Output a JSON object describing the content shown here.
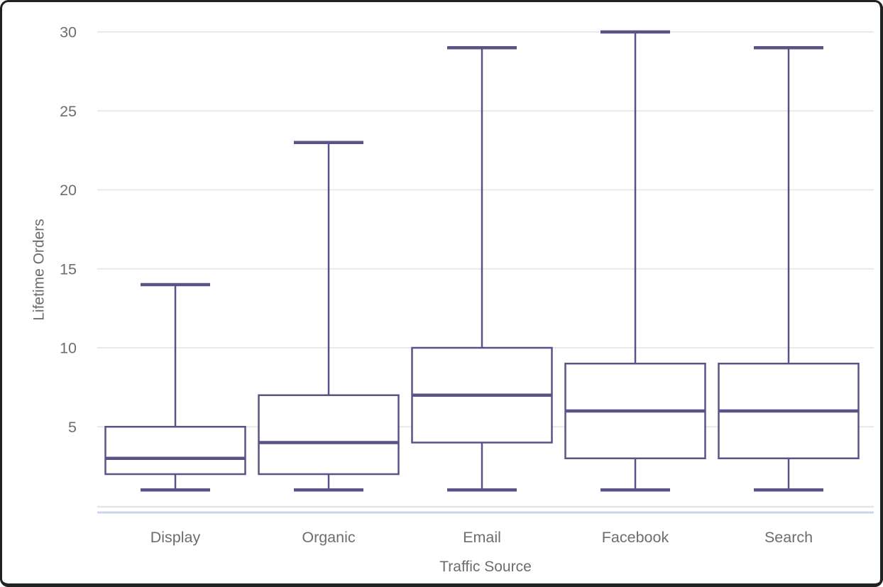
{
  "card": {
    "background": "#ffffff",
    "frame_color": "#1e2223"
  },
  "chart_data": {
    "type": "boxplot",
    "title": "",
    "xlabel": "Traffic Source",
    "ylabel": "Lifetime Orders",
    "categories": [
      "Display",
      "Organic",
      "Email",
      "Facebook",
      "Search"
    ],
    "series": [
      {
        "name": "Display",
        "low": 1,
        "q1": 2,
        "median": 3,
        "q3": 5,
        "high": 14
      },
      {
        "name": "Organic",
        "low": 1,
        "q1": 2,
        "median": 4,
        "q3": 7,
        "high": 23
      },
      {
        "name": "Email",
        "low": 1,
        "q1": 4,
        "median": 7,
        "q3": 10,
        "high": 29
      },
      {
        "name": "Facebook",
        "low": 1,
        "q1": 3,
        "median": 6,
        "q3": 9,
        "high": 30
      },
      {
        "name": "Search",
        "low": 1,
        "q1": 3,
        "median": 6,
        "q3": 9,
        "high": 29
      }
    ],
    "yticks": [
      5,
      10,
      15,
      20,
      25,
      30
    ],
    "ylim": [
      0,
      31
    ],
    "grid": "horizontal",
    "legend": false,
    "colors": {
      "box_stroke": "#5e5088",
      "box_fill": "#ffffff",
      "grid": "#e9e9e9",
      "axis_line": "#e4e4e4",
      "axis_line_accent": "#ccd5e8",
      "label": "#6d6d6d"
    }
  }
}
